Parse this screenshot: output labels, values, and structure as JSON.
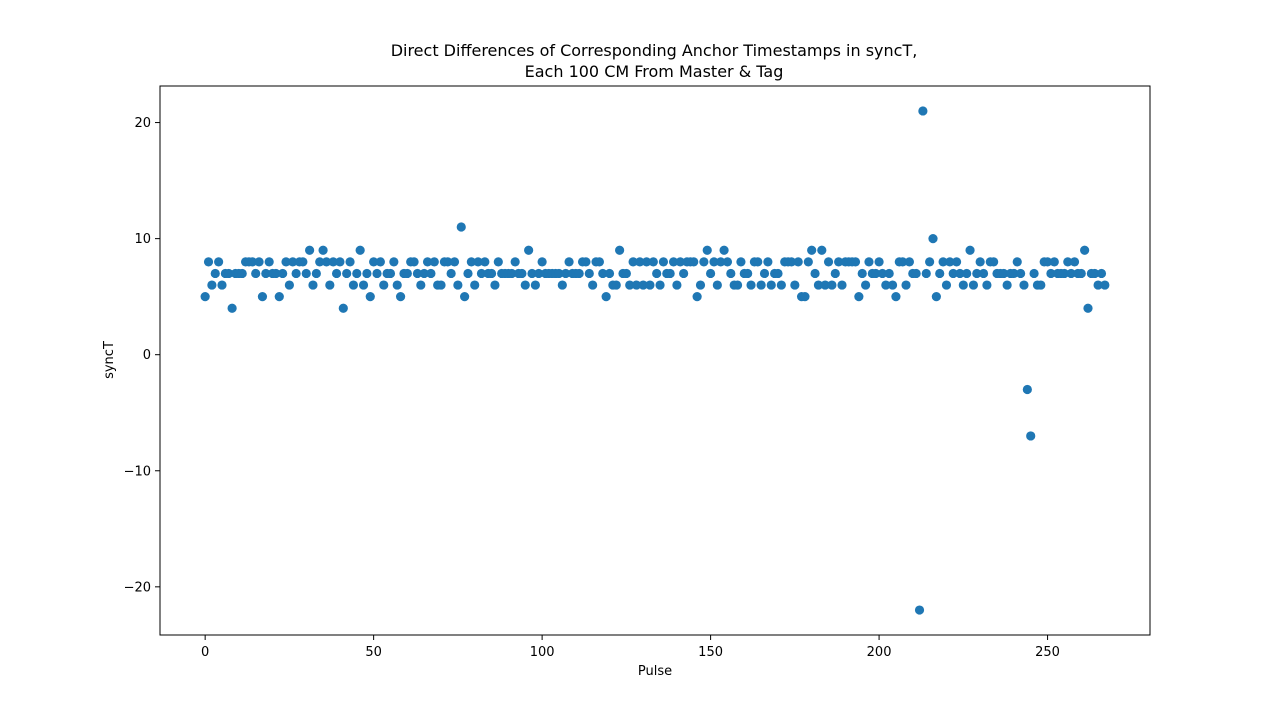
{
  "chart_data": {
    "type": "scatter",
    "title_lines": [
      "Direct Differences of Corresponding Anchor Timestamps in syncT,",
      "Each 100 CM From Master & Tag"
    ],
    "xlabel": "Pulse",
    "ylabel": "syncT",
    "xlim": [
      -13.4,
      280.4
    ],
    "ylim": [
      -24.15,
      23.15
    ],
    "x_ticks": [
      0,
      50,
      100,
      150,
      200,
      250
    ],
    "y_ticks": [
      -20,
      -10,
      0,
      10,
      20
    ],
    "y_tick_labels": [
      "−20",
      "−10",
      "0",
      "10",
      "20"
    ],
    "grid": false,
    "marker_color": "#1f77b4",
    "points": [
      [
        0,
        5
      ],
      [
        1,
        8
      ],
      [
        2,
        6
      ],
      [
        3,
        7
      ],
      [
        4,
        8
      ],
      [
        5,
        6
      ],
      [
        6,
        7
      ],
      [
        7,
        7
      ],
      [
        8,
        4
      ],
      [
        9,
        7
      ],
      [
        10,
        7
      ],
      [
        11,
        7
      ],
      [
        12,
        8
      ],
      [
        13,
        8
      ],
      [
        14,
        8
      ],
      [
        15,
        7
      ],
      [
        16,
        8
      ],
      [
        17,
        5
      ],
      [
        18,
        7
      ],
      [
        19,
        8
      ],
      [
        20,
        7
      ],
      [
        21,
        7
      ],
      [
        22,
        5
      ],
      [
        23,
        7
      ],
      [
        24,
        8
      ],
      [
        25,
        6
      ],
      [
        26,
        8
      ],
      [
        27,
        7
      ],
      [
        28,
        8
      ],
      [
        29,
        8
      ],
      [
        30,
        7
      ],
      [
        31,
        9
      ],
      [
        32,
        6
      ],
      [
        33,
        7
      ],
      [
        34,
        8
      ],
      [
        35,
        9
      ],
      [
        36,
        8
      ],
      [
        37,
        6
      ],
      [
        38,
        8
      ],
      [
        39,
        7
      ],
      [
        40,
        8
      ],
      [
        41,
        4
      ],
      [
        42,
        7
      ],
      [
        43,
        8
      ],
      [
        44,
        6
      ],
      [
        45,
        7
      ],
      [
        46,
        9
      ],
      [
        47,
        6
      ],
      [
        48,
        7
      ],
      [
        49,
        5
      ],
      [
        50,
        8
      ],
      [
        51,
        7
      ],
      [
        52,
        8
      ],
      [
        53,
        6
      ],
      [
        54,
        7
      ],
      [
        55,
        7
      ],
      [
        56,
        8
      ],
      [
        57,
        6
      ],
      [
        58,
        5
      ],
      [
        59,
        7
      ],
      [
        60,
        7
      ],
      [
        61,
        8
      ],
      [
        62,
        8
      ],
      [
        63,
        7
      ],
      [
        64,
        6
      ],
      [
        65,
        7
      ],
      [
        66,
        8
      ],
      [
        67,
        7
      ],
      [
        68,
        8
      ],
      [
        69,
        6
      ],
      [
        70,
        6
      ],
      [
        71,
        8
      ],
      [
        72,
        8
      ],
      [
        73,
        7
      ],
      [
        74,
        8
      ],
      [
        75,
        6
      ],
      [
        76,
        11
      ],
      [
        77,
        5
      ],
      [
        78,
        7
      ],
      [
        79,
        8
      ],
      [
        80,
        6
      ],
      [
        81,
        8
      ],
      [
        82,
        7
      ],
      [
        83,
        8
      ],
      [
        84,
        7
      ],
      [
        85,
        7
      ],
      [
        86,
        6
      ],
      [
        87,
        8
      ],
      [
        88,
        7
      ],
      [
        89,
        7
      ],
      [
        90,
        7
      ],
      [
        91,
        7
      ],
      [
        92,
        8
      ],
      [
        93,
        7
      ],
      [
        94,
        7
      ],
      [
        95,
        6
      ],
      [
        96,
        9
      ],
      [
        97,
        7
      ],
      [
        98,
        6
      ],
      [
        99,
        7
      ],
      [
        100,
        8
      ],
      [
        101,
        7
      ],
      [
        102,
        7
      ],
      [
        103,
        7
      ],
      [
        104,
        7
      ],
      [
        105,
        7
      ],
      [
        106,
        6
      ],
      [
        107,
        7
      ],
      [
        108,
        8
      ],
      [
        109,
        7
      ],
      [
        110,
        7
      ],
      [
        111,
        7
      ],
      [
        112,
        8
      ],
      [
        113,
        8
      ],
      [
        114,
        7
      ],
      [
        115,
        6
      ],
      [
        116,
        8
      ],
      [
        117,
        8
      ],
      [
        118,
        7
      ],
      [
        119,
        5
      ],
      [
        120,
        7
      ],
      [
        121,
        6
      ],
      [
        122,
        6
      ],
      [
        123,
        9
      ],
      [
        124,
        7
      ],
      [
        125,
        7
      ],
      [
        126,
        6
      ],
      [
        127,
        8
      ],
      [
        128,
        6
      ],
      [
        129,
        8
      ],
      [
        130,
        6
      ],
      [
        131,
        8
      ],
      [
        132,
        6
      ],
      [
        133,
        8
      ],
      [
        134,
        7
      ],
      [
        135,
        6
      ],
      [
        136,
        8
      ],
      [
        137,
        7
      ],
      [
        138,
        7
      ],
      [
        139,
        8
      ],
      [
        140,
        6
      ],
      [
        141,
        8
      ],
      [
        142,
        7
      ],
      [
        143,
        8
      ],
      [
        144,
        8
      ],
      [
        145,
        8
      ],
      [
        146,
        5
      ],
      [
        147,
        6
      ],
      [
        148,
        8
      ],
      [
        149,
        9
      ],
      [
        150,
        7
      ],
      [
        151,
        8
      ],
      [
        152,
        6
      ],
      [
        153,
        8
      ],
      [
        154,
        9
      ],
      [
        155,
        8
      ],
      [
        156,
        7
      ],
      [
        157,
        6
      ],
      [
        158,
        6
      ],
      [
        159,
        8
      ],
      [
        160,
        7
      ],
      [
        161,
        7
      ],
      [
        162,
        6
      ],
      [
        163,
        8
      ],
      [
        164,
        8
      ],
      [
        165,
        6
      ],
      [
        166,
        7
      ],
      [
        167,
        8
      ],
      [
        168,
        6
      ],
      [
        169,
        7
      ],
      [
        170,
        7
      ],
      [
        171,
        6
      ],
      [
        172,
        8
      ],
      [
        173,
        8
      ],
      [
        174,
        8
      ],
      [
        175,
        6
      ],
      [
        176,
        8
      ],
      [
        177,
        5
      ],
      [
        178,
        5
      ],
      [
        179,
        8
      ],
      [
        180,
        9
      ],
      [
        181,
        7
      ],
      [
        182,
        6
      ],
      [
        183,
        9
      ],
      [
        184,
        6
      ],
      [
        185,
        8
      ],
      [
        186,
        6
      ],
      [
        187,
        7
      ],
      [
        188,
        8
      ],
      [
        189,
        6
      ],
      [
        190,
        8
      ],
      [
        191,
        8
      ],
      [
        192,
        8
      ],
      [
        193,
        8
      ],
      [
        194,
        5
      ],
      [
        195,
        7
      ],
      [
        196,
        6
      ],
      [
        197,
        8
      ],
      [
        198,
        7
      ],
      [
        199,
        7
      ],
      [
        200,
        8
      ],
      [
        201,
        7
      ],
      [
        202,
        6
      ],
      [
        203,
        7
      ],
      [
        204,
        6
      ],
      [
        205,
        5
      ],
      [
        206,
        8
      ],
      [
        207,
        8
      ],
      [
        208,
        6
      ],
      [
        209,
        8
      ],
      [
        210,
        7
      ],
      [
        211,
        7
      ],
      [
        212,
        -22
      ],
      [
        213,
        21
      ],
      [
        214,
        7
      ],
      [
        215,
        8
      ],
      [
        216,
        10
      ],
      [
        217,
        5
      ],
      [
        218,
        7
      ],
      [
        219,
        8
      ],
      [
        220,
        6
      ],
      [
        221,
        8
      ],
      [
        222,
        7
      ],
      [
        223,
        8
      ],
      [
        224,
        7
      ],
      [
        225,
        6
      ],
      [
        226,
        7
      ],
      [
        227,
        9
      ],
      [
        228,
        6
      ],
      [
        229,
        7
      ],
      [
        230,
        8
      ],
      [
        231,
        7
      ],
      [
        232,
        6
      ],
      [
        233,
        8
      ],
      [
        234,
        8
      ],
      [
        235,
        7
      ],
      [
        236,
        7
      ],
      [
        237,
        7
      ],
      [
        238,
        6
      ],
      [
        239,
        7
      ],
      [
        240,
        7
      ],
      [
        241,
        8
      ],
      [
        242,
        7
      ],
      [
        243,
        6
      ],
      [
        244,
        -3
      ],
      [
        245,
        -7
      ],
      [
        246,
        7
      ],
      [
        247,
        6
      ],
      [
        248,
        6
      ],
      [
        249,
        8
      ],
      [
        250,
        8
      ],
      [
        251,
        7
      ],
      [
        252,
        8
      ],
      [
        253,
        7
      ],
      [
        254,
        7
      ],
      [
        255,
        7
      ],
      [
        256,
        8
      ],
      [
        257,
        7
      ],
      [
        258,
        8
      ],
      [
        259,
        7
      ],
      [
        260,
        7
      ],
      [
        261,
        9
      ],
      [
        262,
        4
      ],
      [
        263,
        7
      ],
      [
        264,
        7
      ],
      [
        265,
        6
      ],
      [
        266,
        7
      ],
      [
        267,
        6
      ]
    ]
  }
}
